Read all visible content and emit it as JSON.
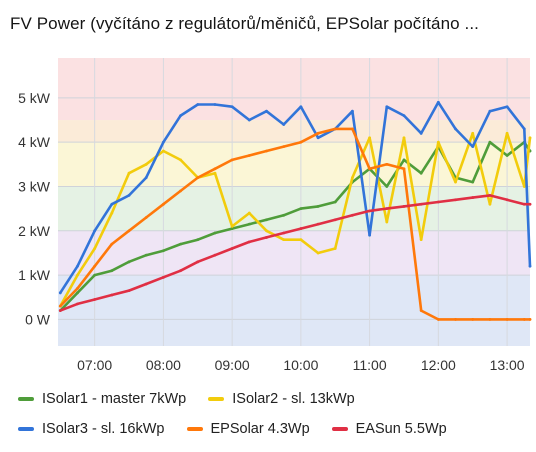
{
  "title": "FV Power (vyčítáno z regulátorů/měničů, EPSolar počítáno ...",
  "chart_data": {
    "type": "line",
    "title": "FV Power (vyčítáno z regulátorů/měničů, EPSolar počítáno ...",
    "xlabel": "",
    "ylabel": "",
    "x_ticks": [
      "07:00",
      "08:00",
      "09:00",
      "10:00",
      "11:00",
      "12:00",
      "13:00"
    ],
    "xlim": [
      "06:28",
      "13:20"
    ],
    "y_ticks": [
      "0 W",
      "1 kW",
      "2 kW",
      "3 kW",
      "4 kW",
      "5 kW"
    ],
    "ylim": [
      -0.6,
      5.9
    ],
    "y_unit": "kW",
    "grid": true,
    "legend_position": "bottom",
    "threshold_bands": [
      {
        "from": -0.6,
        "to": 1.0,
        "color": "#dfe7f6"
      },
      {
        "from": 1.0,
        "to": 2.0,
        "color": "#efe5f5"
      },
      {
        "from": 2.0,
        "to": 3.0,
        "color": "#e5f2e4"
      },
      {
        "from": 3.0,
        "to": 4.0,
        "color": "#fbf6d6"
      },
      {
        "from": 4.0,
        "to": 4.5,
        "color": "#fbebd8"
      },
      {
        "from": 4.5,
        "to": 5.9,
        "color": "#fbe1e2"
      }
    ],
    "series": [
      {
        "name": "ISolar1 - master 7kWp",
        "color": "#4f9d3a",
        "x": [
          "06:30",
          "06:45",
          "07:00",
          "07:15",
          "07:30",
          "07:45",
          "08:00",
          "08:15",
          "08:30",
          "08:45",
          "09:00",
          "09:15",
          "09:30",
          "09:45",
          "10:00",
          "10:15",
          "10:30",
          "10:45",
          "11:00",
          "11:15",
          "11:30",
          "11:45",
          "12:00",
          "12:15",
          "12:30",
          "12:45",
          "13:00",
          "13:15",
          "13:20"
        ],
        "values": [
          0.2,
          0.6,
          1.0,
          1.1,
          1.3,
          1.45,
          1.55,
          1.7,
          1.8,
          1.95,
          2.05,
          2.15,
          2.25,
          2.35,
          2.5,
          2.55,
          2.65,
          3.1,
          3.4,
          3.0,
          3.6,
          3.3,
          3.9,
          3.2,
          3.1,
          4.0,
          3.7,
          4.0,
          3.8
        ]
      },
      {
        "name": "ISolar2 - sl. 13kWp",
        "color": "#f2cc0c",
        "x": [
          "06:30",
          "06:45",
          "07:00",
          "07:15",
          "07:30",
          "07:45",
          "08:00",
          "08:15",
          "08:30",
          "08:45",
          "09:00",
          "09:15",
          "09:30",
          "09:45",
          "10:00",
          "10:15",
          "10:30",
          "10:45",
          "11:00",
          "11:15",
          "11:30",
          "11:45",
          "12:00",
          "12:15",
          "12:30",
          "12:45",
          "13:00",
          "13:15",
          "13:20"
        ],
        "values": [
          0.3,
          1.0,
          1.6,
          2.4,
          3.3,
          3.5,
          3.8,
          3.6,
          3.2,
          3.3,
          2.1,
          2.4,
          2.0,
          1.8,
          1.8,
          1.5,
          1.6,
          3.2,
          4.1,
          2.2,
          4.1,
          1.8,
          4.0,
          3.1,
          4.2,
          2.6,
          4.2,
          3.0,
          4.1
        ]
      },
      {
        "name": "ISolar3 - sl. 16kWp",
        "color": "#3274d9",
        "x": [
          "06:30",
          "06:45",
          "07:00",
          "07:15",
          "07:30",
          "07:45",
          "08:00",
          "08:15",
          "08:30",
          "08:45",
          "09:00",
          "09:15",
          "09:30",
          "09:45",
          "10:00",
          "10:15",
          "10:30",
          "10:45",
          "11:00",
          "11:15",
          "11:30",
          "11:45",
          "12:00",
          "12:15",
          "12:30",
          "12:45",
          "13:00",
          "13:15",
          "13:20"
        ],
        "values": [
          0.6,
          1.2,
          2.0,
          2.6,
          2.8,
          3.2,
          4.0,
          4.6,
          4.85,
          4.85,
          4.8,
          4.5,
          4.7,
          4.4,
          4.8,
          4.1,
          4.3,
          4.7,
          1.9,
          4.8,
          4.6,
          4.2,
          4.9,
          4.3,
          3.9,
          4.7,
          4.8,
          4.3,
          1.2
        ]
      },
      {
        "name": "EPSolar 4.3Wp",
        "color": "#ff780a",
        "x": [
          "06:30",
          "06:45",
          "07:00",
          "07:15",
          "07:30",
          "07:45",
          "08:00",
          "08:15",
          "08:30",
          "08:45",
          "09:00",
          "09:15",
          "09:30",
          "09:45",
          "10:00",
          "10:15",
          "10:30",
          "10:45",
          "11:00",
          "11:15",
          "11:30",
          "11:45",
          "12:00",
          "12:15",
          "12:30",
          "12:45",
          "13:00",
          "13:15",
          "13:20"
        ],
        "values": [
          0.3,
          0.7,
          1.2,
          1.7,
          2.0,
          2.3,
          2.6,
          2.9,
          3.2,
          3.4,
          3.6,
          3.7,
          3.8,
          3.9,
          4.0,
          4.2,
          4.3,
          4.3,
          3.4,
          3.5,
          3.4,
          0.2,
          0.0,
          0.0,
          0.0,
          0.0,
          0.0,
          0.0,
          0.0
        ]
      },
      {
        "name": "EASun 5.5Wp",
        "color": "#e02f44",
        "x": [
          "06:30",
          "06:45",
          "07:00",
          "07:15",
          "07:30",
          "07:45",
          "08:00",
          "08:15",
          "08:30",
          "08:45",
          "09:00",
          "09:15",
          "09:30",
          "09:45",
          "10:00",
          "10:15",
          "10:30",
          "10:45",
          "11:00",
          "11:15",
          "11:30",
          "11:45",
          "12:00",
          "12:15",
          "12:30",
          "12:45",
          "13:00",
          "13:15",
          "13:20"
        ],
        "values": [
          0.2,
          0.35,
          0.45,
          0.55,
          0.65,
          0.8,
          0.95,
          1.1,
          1.3,
          1.45,
          1.6,
          1.75,
          1.85,
          1.95,
          2.05,
          2.15,
          2.25,
          2.35,
          2.45,
          2.5,
          2.55,
          2.6,
          2.65,
          2.7,
          2.75,
          2.8,
          2.7,
          2.6,
          2.6
        ]
      }
    ]
  },
  "legend": {
    "rows": [
      [
        {
          "label": "ISolar1 - master 7kWp",
          "color": "#4f9d3a"
        },
        {
          "label": "ISolar2 - sl. 13kWp",
          "color": "#f2cc0c"
        }
      ],
      [
        {
          "label": "ISolar3 - sl. 16kWp",
          "color": "#3274d9"
        },
        {
          "label": "EPSolar 4.3Wp",
          "color": "#ff780a"
        },
        {
          "label": "EASun 5.5Wp",
          "color": "#e02f44"
        }
      ]
    ]
  }
}
